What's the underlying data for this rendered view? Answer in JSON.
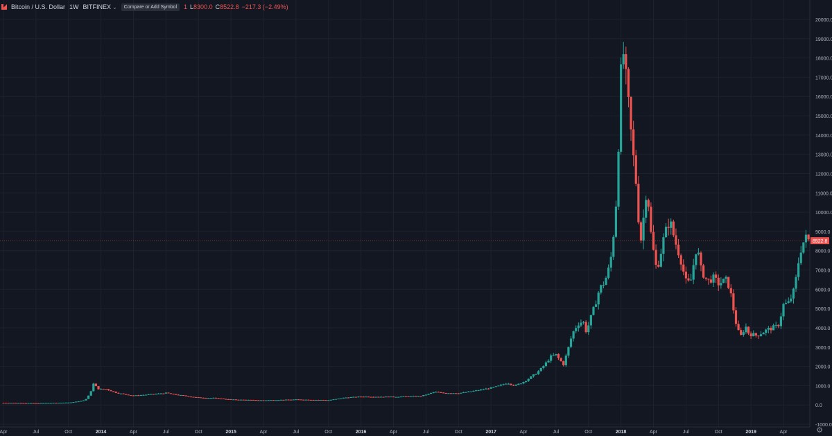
{
  "header": {
    "symbol": "Bitcoin / U.S. Dollar",
    "interval": "1W",
    "exchange": "BITFINEX",
    "compare_label": "Compare or Add Symbol",
    "low_key": "L",
    "low_value": "8300.0",
    "close_key": "C",
    "close_value": "8522.8",
    "change": "−217.3 (−2.49%)",
    "partial_text": "1"
  },
  "colors": {
    "background": "#131722",
    "grid": "#1e222d",
    "up": "#26a69a",
    "down": "#ef5350",
    "axis_text": "#b2b5be",
    "price_line": "#ef5350"
  },
  "icons": {
    "logo": "bitfinex-logo-icon",
    "settings": "gear-icon",
    "caret": "chevron-down-icon"
  },
  "chart_data": {
    "type": "candlestick",
    "title": "Bitcoin / U.S. Dollar",
    "interval": "1W",
    "exchange": "BITFINEX",
    "y_axis_side": "right",
    "y_ticks": [
      -1000,
      0,
      1000,
      2000,
      3000,
      4000,
      5000,
      6000,
      7000,
      8000,
      9000,
      10000,
      11000,
      12000,
      13000,
      14000,
      15000,
      16000,
      17000,
      18000,
      19000,
      20000
    ],
    "x_ticks": [
      "Apr",
      "Jul",
      "Oct",
      "2014",
      "Apr",
      "Jul",
      "Oct",
      "2015",
      "Apr",
      "Jul",
      "Oct",
      "2016",
      "Apr",
      "Jul",
      "Oct",
      "2017",
      "Apr",
      "Jul",
      "Oct",
      "2018",
      "Apr",
      "Jul",
      "Oct",
      "2019",
      "Apr"
    ],
    "x_tick_months": [
      0,
      3,
      6,
      9,
      12,
      15,
      18,
      21,
      24,
      27,
      30,
      33,
      36,
      39,
      42,
      45,
      48,
      51,
      54,
      57,
      60,
      63,
      66,
      69,
      72
    ],
    "x_tick_year_labels": [
      "2014",
      "2015",
      "2016",
      "2017",
      "2018",
      "2019"
    ],
    "last_price_label": "8522.8",
    "grid": true,
    "up_color": "#26a69a",
    "down_color": "#ef5350",
    "price_anchors_by_month": [
      [
        0,
        110
      ],
      [
        3,
        90
      ],
      [
        6,
        120
      ],
      [
        7.5,
        250
      ],
      [
        8.3,
        1100
      ],
      [
        8.8,
        820
      ],
      [
        9.5,
        820
      ],
      [
        10.5,
        620
      ],
      [
        12,
        480
      ],
      [
        15,
        620
      ],
      [
        17,
        450
      ],
      [
        18,
        380
      ],
      [
        19.5,
        360
      ],
      [
        21,
        280
      ],
      [
        24,
        240
      ],
      [
        27,
        280
      ],
      [
        30,
        250
      ],
      [
        31.5,
        380
      ],
      [
        33,
        430
      ],
      [
        36,
        420
      ],
      [
        38.5,
        460
      ],
      [
        39.8,
        680
      ],
      [
        40.5,
        620
      ],
      [
        42,
        610
      ],
      [
        44,
        780
      ],
      [
        45.5,
        950
      ],
      [
        46.5,
        1150
      ],
      [
        47.2,
        1000
      ],
      [
        48,
        1200
      ],
      [
        49.5,
        1800
      ],
      [
        50.5,
        2500
      ],
      [
        51,
        2600
      ],
      [
        51.7,
        2100
      ],
      [
        52,
        2700
      ],
      [
        52.5,
        3700
      ],
      [
        53,
        4200
      ],
      [
        53.5,
        4350
      ],
      [
        53.8,
        3800
      ],
      [
        54.2,
        4500
      ],
      [
        55,
        6000
      ],
      [
        55.5,
        6400
      ],
      [
        56,
        7300
      ],
      [
        56.5,
        10000
      ],
      [
        56.85,
        14800
      ],
      [
        57.1,
        19000
      ],
      [
        57.6,
        16200
      ],
      [
        58.0,
        13700
      ],
      [
        58.4,
        11500
      ],
      [
        58.8,
        8400
      ],
      [
        59.4,
        11500
      ],
      [
        59.8,
        8700
      ],
      [
        60.3,
        7000
      ],
      [
        61.0,
        8800
      ],
      [
        61.5,
        9600
      ],
      [
        62.0,
        8500
      ],
      [
        62.5,
        7600
      ],
      [
        63.0,
        6400
      ],
      [
        63.4,
        6300
      ],
      [
        63.7,
        7300
      ],
      [
        64.0,
        8300
      ],
      [
        64.4,
        7000
      ],
      [
        65.0,
        6400
      ],
      [
        65.5,
        6600
      ],
      [
        66.0,
        6300
      ],
      [
        66.8,
        6500
      ],
      [
        67.2,
        5600
      ],
      [
        67.6,
        4300
      ],
      [
        68.0,
        3500
      ],
      [
        68.5,
        4100
      ],
      [
        68.8,
        3700
      ],
      [
        69.5,
        3600
      ],
      [
        70.5,
        3900
      ],
      [
        71.0,
        4000
      ],
      [
        71.5,
        4100
      ],
      [
        72.0,
        5200
      ],
      [
        72.5,
        5300
      ],
      [
        73.0,
        6000
      ],
      [
        73.5,
        7900
      ],
      [
        74.0,
        8700
      ],
      [
        74.35,
        8522.8
      ]
    ]
  }
}
